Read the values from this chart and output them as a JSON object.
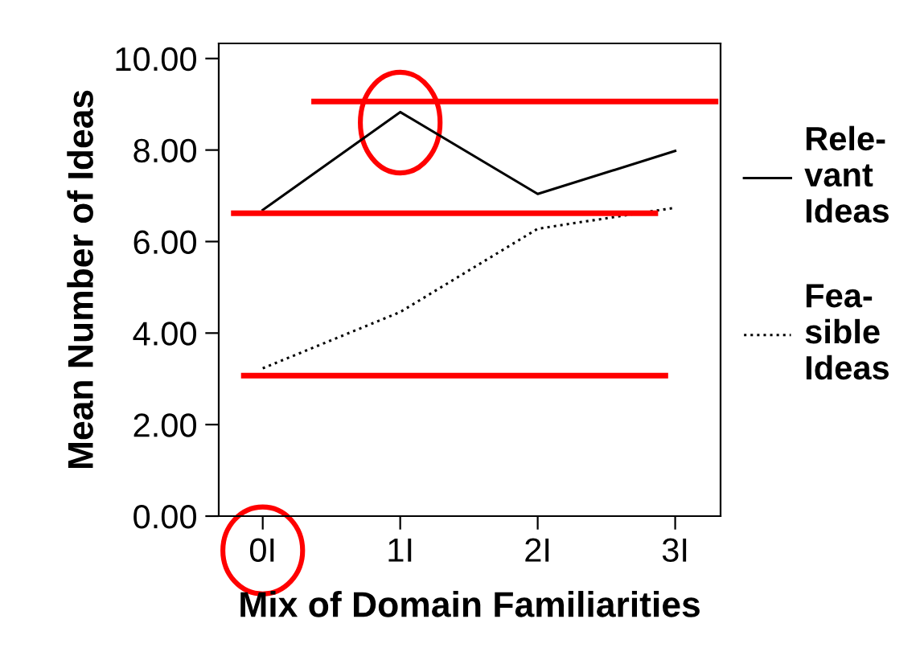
{
  "chart_data": {
    "type": "line",
    "xlabel": "Mix of Domain Familiarities",
    "ylabel": "Mean Number of Ideas",
    "categories": [
      "0I",
      "1I",
      "2I",
      "3I"
    ],
    "series": [
      {
        "name": "Rele-\nvant\nIdeas",
        "color": "#000000",
        "line_style": "solid",
        "values": [
          6.69,
          8.83,
          7.04,
          7.98
        ]
      },
      {
        "name": "Fea-\nsible\nIdeas",
        "color": "#000000",
        "line_style": "dotted",
        "values": [
          3.23,
          4.46,
          6.28,
          6.74
        ]
      }
    ],
    "ref_lines": [
      {
        "axis": "y",
        "value": 9.06,
        "color": "#ff0000",
        "line_style": "solid"
      },
      {
        "axis": "y",
        "value": 6.62,
        "color": "#ff0000",
        "line_style": "solid"
      },
      {
        "axis": "y",
        "value": 3.07,
        "color": "#ff0000",
        "line_style": "solid"
      }
    ],
    "ylim": [
      0,
      10.33
    ],
    "yticks": [
      {
        "value": 0,
        "label": "0.00"
      },
      {
        "value": 2,
        "label": "2.00"
      },
      {
        "value": 4,
        "label": "4.00"
      },
      {
        "value": 6,
        "label": "6.00"
      },
      {
        "value": 8,
        "label": "8.00"
      },
      {
        "value": 10,
        "label": "10.00"
      }
    ],
    "grid": false,
    "legend": "right",
    "marker": "none"
  }
}
